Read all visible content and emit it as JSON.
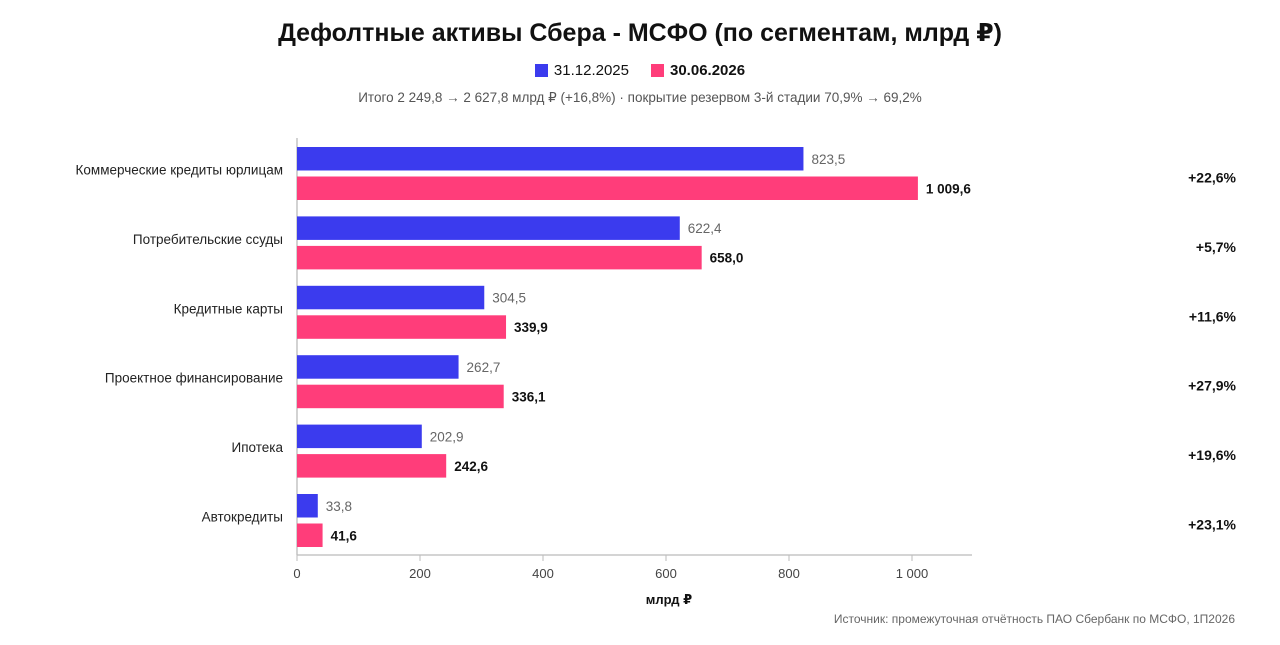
{
  "title": "Дефолтные активы Сбера - МСФО (по сегментам, млрд ₽)",
  "subtitle": "Итого 2 249,8 → 2 627,8 млрд ₽ (+16,8%) · покрытие резервом 3-й стадии 70,9% → 69,2%",
  "source": "Источник: промежуточная отчётность ПАО Сбербанк по МСФО, 1П2026",
  "colors": {
    "series1": "#3b3bee",
    "series2": "#ff3d7a",
    "axis": "#bbbbbb",
    "grid": "#dddddd"
  },
  "chart_data": {
    "type": "bar",
    "orientation": "horizontal",
    "categories": [
      "Коммерческие кредиты юрлицам",
      "Потребительские ссуды",
      "Кредитные карты",
      "Проектное финансирование",
      "Ипотека",
      "Автокредиты"
    ],
    "series": [
      {
        "name": "31.12.2025",
        "values": [
          823.5,
          622.4,
          304.5,
          262.7,
          202.9,
          33.8
        ],
        "labels": [
          "823,5",
          "622,4",
          "304,5",
          "262,7",
          "202,9",
          "33,8"
        ]
      },
      {
        "name": "30.06.2026",
        "values": [
          1009.6,
          658.0,
          339.9,
          336.1,
          242.6,
          41.6
        ],
        "labels": [
          "1 009,6",
          "658,0",
          "339,9",
          "336,1",
          "242,6",
          "41,6"
        ]
      }
    ],
    "changes": [
      "+22,6%",
      "+5,7%",
      "+11,6%",
      "+27,9%",
      "+19,6%",
      "+23,1%"
    ],
    "xticks": [
      "0",
      "200",
      "400",
      "600",
      "800",
      "1 000"
    ],
    "xtick_values": [
      0,
      200,
      400,
      600,
      800,
      1000
    ],
    "xlim": [
      0,
      1100
    ],
    "xlabel": "млрд ₽",
    "ylabel": "",
    "legend_position": "top-center"
  }
}
